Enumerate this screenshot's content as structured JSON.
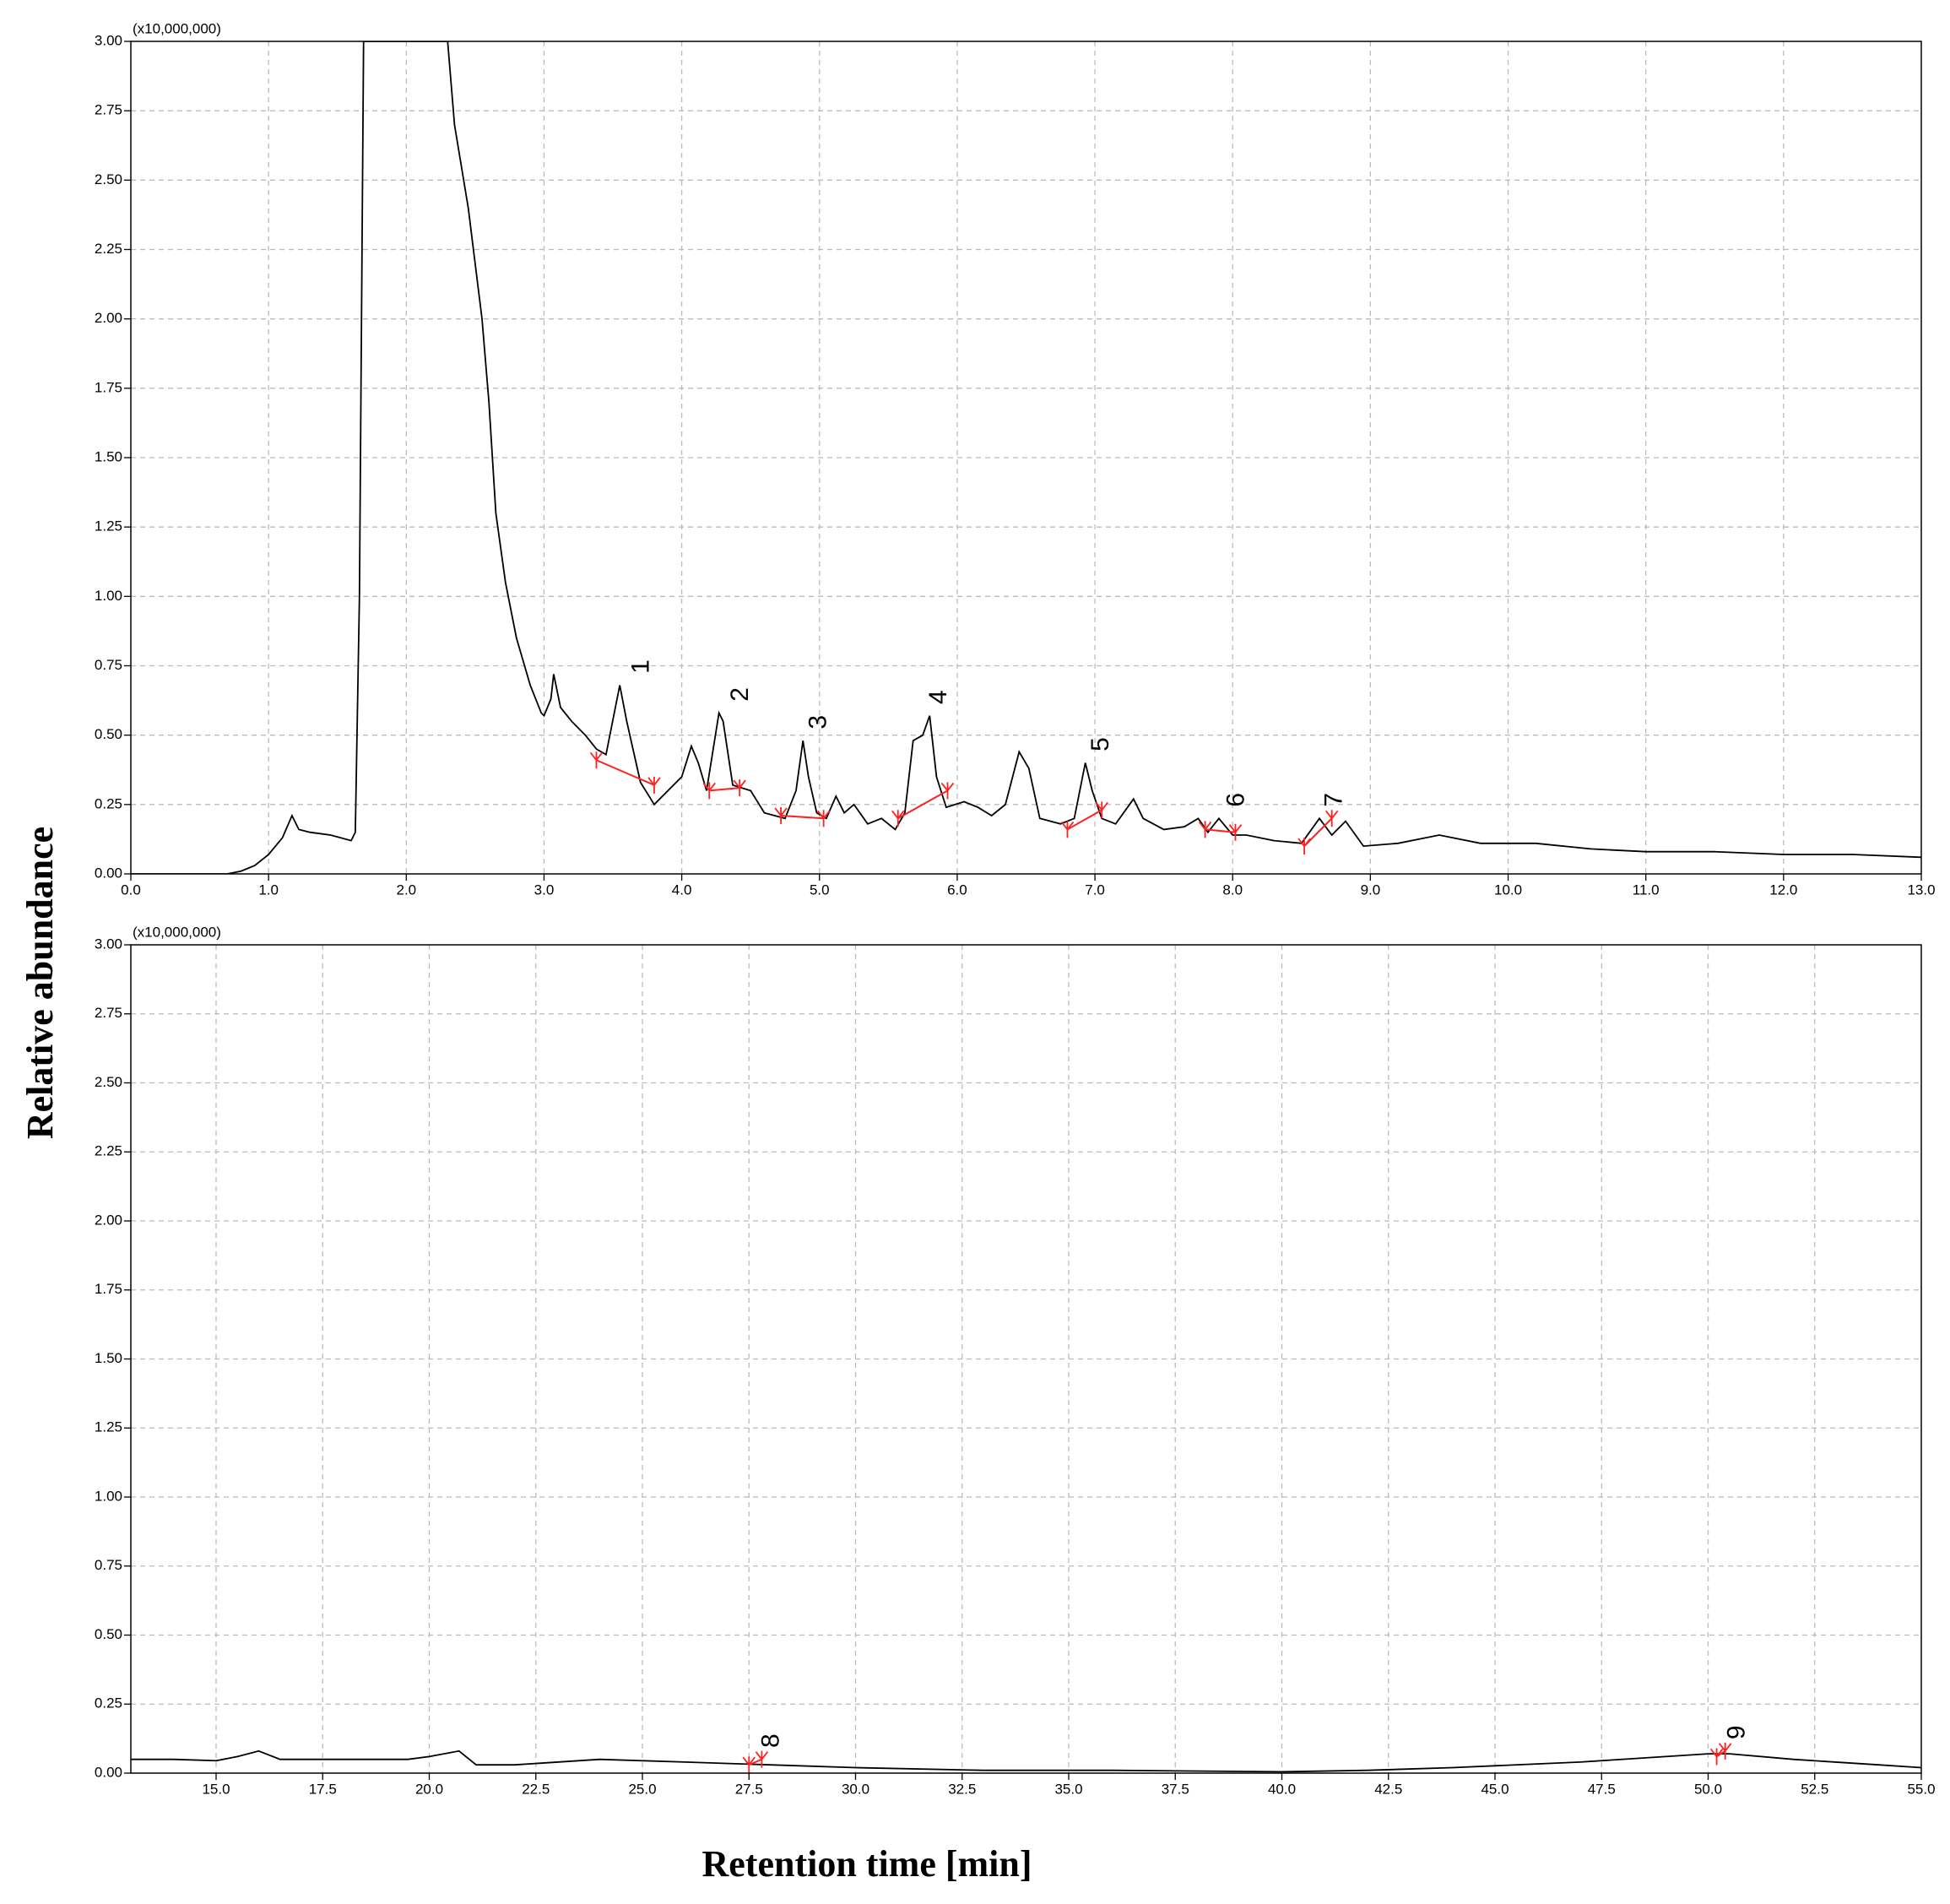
{
  "chart_data": [
    {
      "type": "line",
      "multiplier": "(x10,000,000)",
      "ylabel": "Relative abundance",
      "color": "#000000",
      "peak_color": "#ff2020",
      "grid": true,
      "xlim": [
        0,
        13
      ],
      "ylim": [
        0,
        3
      ],
      "xticks": [
        {
          "value": 0,
          "label": "0.0"
        },
        {
          "value": 1,
          "label": "1.0"
        },
        {
          "value": 2,
          "label": "2.0"
        },
        {
          "value": 3,
          "label": "3.0"
        },
        {
          "value": 4,
          "label": "4.0"
        },
        {
          "value": 5,
          "label": "5.0"
        },
        {
          "value": 6,
          "label": "6.0"
        },
        {
          "value": 7,
          "label": "7.0"
        },
        {
          "value": 8,
          "label": "8.0"
        },
        {
          "value": 9,
          "label": "9.0"
        },
        {
          "value": 10,
          "label": "10.0"
        },
        {
          "value": 11,
          "label": "11.0"
        },
        {
          "value": 12,
          "label": "12.0"
        },
        {
          "value": 13,
          "label": "13.0"
        }
      ],
      "yticks": [
        {
          "value": 0,
          "label": "0.00"
        },
        {
          "value": 0.25,
          "label": "0.25"
        },
        {
          "value": 0.5,
          "label": "0.50"
        },
        {
          "value": 0.75,
          "label": "0.75"
        },
        {
          "value": 1,
          "label": "1.00"
        },
        {
          "value": 1.25,
          "label": "1.25"
        },
        {
          "value": 1.5,
          "label": "1.50"
        },
        {
          "value": 1.75,
          "label": "1.75"
        },
        {
          "value": 2,
          "label": "2.00"
        },
        {
          "value": 2.25,
          "label": "2.25"
        },
        {
          "value": 2.5,
          "label": "2.50"
        },
        {
          "value": 2.75,
          "label": "2.75"
        },
        {
          "value": 3,
          "label": "3.00"
        }
      ],
      "x": [
        0,
        0.7,
        0.8,
        0.9,
        1.0,
        1.1,
        1.17,
        1.22,
        1.3,
        1.45,
        1.6,
        1.63,
        1.66,
        1.69,
        2.3,
        2.35,
        2.45,
        2.55,
        2.6,
        2.65,
        2.72,
        2.8,
        2.9,
        2.98,
        3.0,
        3.05,
        3.07,
        3.12,
        3.2,
        3.3,
        3.38,
        3.45,
        3.55,
        3.6,
        3.7,
        3.8,
        3.9,
        4.0,
        4.07,
        4.12,
        4.18,
        4.27,
        4.3,
        4.37,
        4.5,
        4.6,
        4.75,
        4.83,
        4.88,
        4.92,
        4.98,
        5.05,
        5.12,
        5.18,
        5.25,
        5.35,
        5.45,
        5.55,
        5.62,
        5.68,
        5.75,
        5.8,
        5.85,
        5.92,
        6.05,
        6.15,
        6.25,
        6.35,
        6.45,
        6.52,
        6.6,
        6.75,
        6.85,
        6.93,
        6.98,
        7.05,
        7.15,
        7.28,
        7.35,
        7.5,
        7.65,
        7.75,
        7.82,
        7.9,
        8.0,
        8.1,
        8.3,
        8.5,
        8.63,
        8.72,
        8.82,
        8.95,
        9.2,
        9.5,
        9.8,
        10.2,
        10.6,
        11.0,
        11.5,
        12.0,
        12.5,
        13.0
      ],
      "values": [
        0,
        0,
        0.01,
        0.03,
        0.07,
        0.13,
        0.21,
        0.16,
        0.15,
        0.14,
        0.12,
        0.15,
        1.0,
        3.0,
        3.0,
        2.7,
        2.4,
        2.0,
        1.7,
        1.3,
        1.05,
        0.85,
        0.68,
        0.58,
        0.57,
        0.63,
        0.72,
        0.6,
        0.55,
        0.5,
        0.45,
        0.43,
        0.68,
        0.55,
        0.33,
        0.25,
        0.3,
        0.35,
        0.46,
        0.4,
        0.3,
        0.58,
        0.55,
        0.32,
        0.3,
        0.22,
        0.2,
        0.3,
        0.48,
        0.35,
        0.22,
        0.2,
        0.28,
        0.22,
        0.25,
        0.18,
        0.2,
        0.16,
        0.22,
        0.48,
        0.5,
        0.57,
        0.35,
        0.24,
        0.26,
        0.24,
        0.21,
        0.25,
        0.44,
        0.38,
        0.2,
        0.18,
        0.2,
        0.4,
        0.3,
        0.2,
        0.18,
        0.27,
        0.2,
        0.16,
        0.17,
        0.2,
        0.15,
        0.2,
        0.14,
        0.14,
        0.12,
        0.11,
        0.2,
        0.14,
        0.19,
        0.1,
        0.11,
        0.14,
        0.11,
        0.11,
        0.09,
        0.08,
        0.08,
        0.07,
        0.07,
        0.06
      ],
      "peaks": [
        {
          "label": "1",
          "x": [
            3.38,
            3.8
          ],
          "y": [
            0.41,
            0.32
          ]
        },
        {
          "label": "2",
          "x": [
            4.2,
            4.42
          ],
          "y": [
            0.3,
            0.31
          ]
        },
        {
          "label": "3",
          "x": [
            4.72,
            5.03
          ],
          "y": [
            0.21,
            0.2
          ]
        },
        {
          "label": "4",
          "x": [
            5.57,
            5.93
          ],
          "y": [
            0.2,
            0.3
          ]
        },
        {
          "label": "5",
          "x": [
            6.8,
            7.05
          ],
          "y": [
            0.16,
            0.23
          ]
        },
        {
          "label": "6",
          "x": [
            7.8,
            8.02
          ],
          "y": [
            0.16,
            0.15
          ]
        },
        {
          "label": "7",
          "x": [
            8.52,
            8.72
          ],
          "y": [
            0.1,
            0.2
          ]
        }
      ]
    },
    {
      "type": "line",
      "multiplier": "(x10,000,000)",
      "xlabel": "Retention time [min]",
      "color": "#000000",
      "peak_color": "#ff2020",
      "grid": true,
      "xlim": [
        13,
        55
      ],
      "ylim": [
        0,
        3
      ],
      "xticks": [
        {
          "value": 15,
          "label": "15.0"
        },
        17.5,
        {
          "value": 20,
          "label": "20.0"
        },
        22.5,
        {
          "value": 25,
          "label": "25.0"
        },
        27.5,
        {
          "value": 30,
          "label": "30.0"
        },
        32.5,
        {
          "value": 35,
          "label": "35.0"
        },
        37.5,
        {
          "value": 40,
          "label": "40.0"
        },
        42.5,
        {
          "value": 45,
          "label": "45.0"
        },
        47.5,
        {
          "value": 50,
          "label": "50.0"
        },
        52.5,
        {
          "value": 55,
          "label": "55.0"
        }
      ],
      "yticks": [
        {
          "value": 0,
          "label": "0.00"
        },
        {
          "value": 0.25,
          "label": "0.25"
        },
        {
          "value": 0.5,
          "label": "0.50"
        },
        {
          "value": 0.75,
          "label": "0.75"
        },
        {
          "value": 1,
          "label": "1.00"
        },
        {
          "value": 1.25,
          "label": "1.25"
        },
        {
          "value": 1.5,
          "label": "1.50"
        },
        {
          "value": 1.75,
          "label": "1.75"
        },
        {
          "value": 2,
          "label": "2.00"
        },
        {
          "value": 2.25,
          "label": "2.25"
        },
        {
          "value": 2.5,
          "label": "2.50"
        },
        {
          "value": 2.75,
          "label": "2.75"
        },
        {
          "value": 3,
          "label": "3.00"
        }
      ],
      "x": [
        13,
        14,
        15,
        15.5,
        16,
        16.5,
        18,
        19.5,
        20,
        20.7,
        21.1,
        22,
        24,
        26,
        28,
        30,
        33,
        36,
        40,
        42,
        44,
        47,
        50,
        50.5,
        52,
        54,
        55
      ],
      "values": [
        0.05,
        0.05,
        0.045,
        0.06,
        0.08,
        0.05,
        0.05,
        0.05,
        0.06,
        0.08,
        0.03,
        0.03,
        0.05,
        0.04,
        0.03,
        0.02,
        0.01,
        0.01,
        0.005,
        0.01,
        0.02,
        0.04,
        0.07,
        0.07,
        0.05,
        0.03,
        0.02
      ],
      "peaks": [
        {
          "label": "8",
          "x": [
            27.5,
            27.8
          ],
          "y": [
            0.03,
            0.05
          ]
        },
        {
          "label": "9",
          "x": [
            50.2,
            50.4
          ],
          "y": [
            0.06,
            0.08
          ]
        }
      ]
    }
  ]
}
